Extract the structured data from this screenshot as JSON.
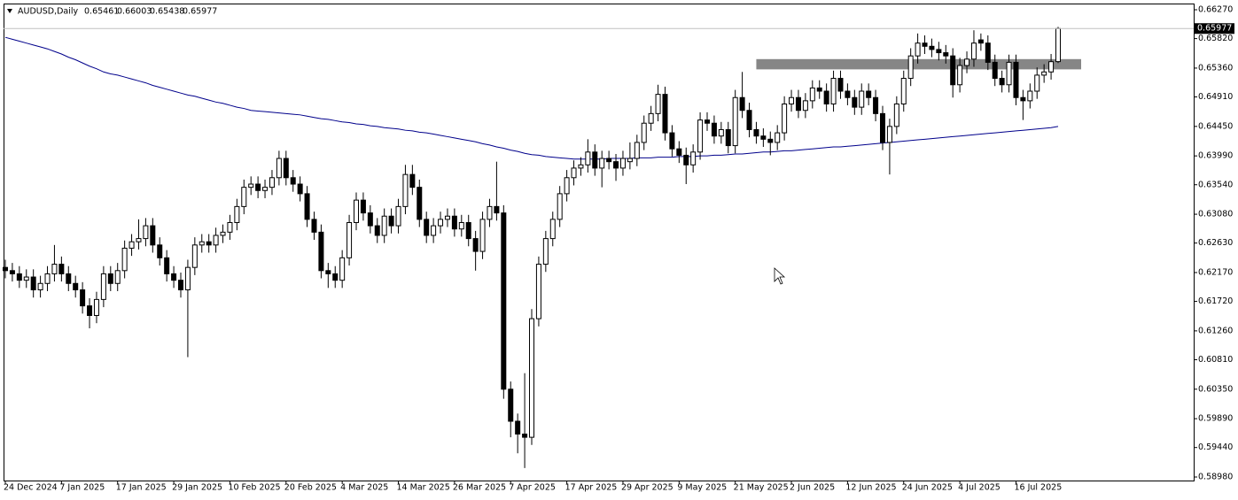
{
  "chart_data": {
    "type": "candlestick",
    "title": "AUDUSD,Daily",
    "categories": [
      "24 Dec 2024",
      null,
      null,
      null,
      null,
      null,
      null,
      null,
      "7 Jan 2025",
      null,
      null,
      null,
      null,
      null,
      null,
      null,
      "17 Jan 2025",
      null,
      null,
      null,
      null,
      null,
      null,
      null,
      "29 Jan 2025",
      null,
      null,
      null,
      null,
      null,
      null,
      null,
      "10 Feb 2025",
      null,
      null,
      null,
      null,
      null,
      null,
      null,
      "20 Feb 2025",
      null,
      null,
      null,
      null,
      null,
      null,
      null,
      "4 Mar 2025",
      null,
      null,
      null,
      null,
      null,
      null,
      null,
      "14 Mar 2025",
      null,
      null,
      null,
      null,
      null,
      null,
      null,
      "26 Mar 2025",
      null,
      null,
      null,
      null,
      null,
      null,
      null,
      "7 Apr 2025",
      null,
      null,
      null,
      null,
      null,
      null,
      null,
      "17 Apr 2025",
      null,
      null,
      null,
      null,
      null,
      null,
      null,
      "29 Apr 2025",
      null,
      null,
      null,
      null,
      null,
      null,
      null,
      "9 May 2025",
      null,
      null,
      null,
      null,
      null,
      null,
      null,
      "21 May 2025",
      null,
      null,
      null,
      null,
      null,
      null,
      null,
      "2 Jun 2025",
      null,
      null,
      null,
      null,
      null,
      null,
      null,
      "12 Jun 2025",
      null,
      null,
      null,
      null,
      null,
      null,
      null,
      "24 Jun 2025",
      null,
      null,
      null,
      null,
      null,
      null,
      null,
      "4 Jul 2025",
      null,
      null,
      null,
      null,
      null,
      null,
      null,
      "16 Jul 2025",
      null,
      null,
      null,
      null,
      null,
      null
    ],
    "open": [
      0.6225,
      0.622,
      0.6215,
      0.6205,
      0.621,
      0.619,
      0.62,
      0.6215,
      0.623,
      0.6215,
      0.62,
      0.619,
      0.6165,
      0.615,
      0.6175,
      0.6215,
      0.62,
      0.622,
      0.6255,
      0.6265,
      0.627,
      0.629,
      0.626,
      0.624,
      0.6215,
      0.6205,
      0.619,
      0.6225,
      0.626,
      0.6265,
      0.626,
      0.6275,
      0.628,
      0.6295,
      0.632,
      0.635,
      0.6355,
      0.6345,
      0.635,
      0.6365,
      0.6395,
      0.6365,
      0.6355,
      0.634,
      0.63,
      0.628,
      0.622,
      0.6215,
      0.6205,
      0.624,
      0.6295,
      0.633,
      0.631,
      0.629,
      0.6275,
      0.6305,
      0.629,
      0.632,
      0.637,
      0.635,
      0.63,
      0.6275,
      0.629,
      0.63,
      0.6305,
      0.6285,
      0.6295,
      0.627,
      0.625,
      0.63,
      0.632,
      0.631,
      0.6035,
      0.5985,
      0.5965,
      0.596,
      0.6145,
      0.623,
      0.627,
      0.63,
      0.634,
      0.6365,
      0.638,
      0.6385,
      0.6405,
      0.638,
      0.6395,
      0.639,
      0.638,
      0.639,
      0.6395,
      0.642,
      0.645,
      0.6465,
      0.6495,
      0.6435,
      0.641,
      0.64,
      0.6385,
      0.6405,
      0.6455,
      0.645,
      0.643,
      0.644,
      0.6415,
      0.649,
      0.647,
      0.644,
      0.643,
      0.6425,
      0.642,
      0.6435,
      0.648,
      0.649,
      0.647,
      0.6485,
      0.6505,
      0.65,
      0.648,
      0.652,
      0.65,
      0.649,
      0.6475,
      0.65,
      0.649,
      0.6465,
      0.642,
      0.6445,
      0.648,
      0.652,
      0.6555,
      0.6575,
      0.657,
      0.6565,
      0.656,
      0.6555,
      0.651,
      0.654,
      0.655,
      0.658,
      0.6575,
      0.6545,
      0.652,
      0.651,
      0.6545,
      0.649,
      0.6485,
      0.65,
      0.6525,
      0.653,
      0.65461
    ],
    "high": [
      0.6237,
      0.6232,
      0.6227,
      0.6222,
      0.6222,
      0.6212,
      0.6227,
      0.626,
      0.6242,
      0.6227,
      0.6212,
      0.6202,
      0.6177,
      0.6187,
      0.6227,
      0.6227,
      0.6232,
      0.6267,
      0.6277,
      0.63,
      0.6302,
      0.6302,
      0.6272,
      0.6252,
      0.6227,
      0.6217,
      0.6237,
      0.6272,
      0.6277,
      0.6277,
      0.6287,
      0.6292,
      0.6307,
      0.6332,
      0.6362,
      0.6367,
      0.6367,
      0.6362,
      0.6377,
      0.6407,
      0.6407,
      0.6377,
      0.6367,
      0.6352,
      0.6312,
      0.6292,
      0.6232,
      0.6227,
      0.6252,
      0.6307,
      0.6342,
      0.6342,
      0.6322,
      0.6302,
      0.6317,
      0.6317,
      0.6332,
      0.6385,
      0.6385,
      0.6362,
      0.6312,
      0.6302,
      0.6312,
      0.6317,
      0.6317,
      0.6307,
      0.6307,
      0.6282,
      0.6312,
      0.6332,
      0.639,
      0.6322,
      0.6047,
      0.5997,
      0.606,
      0.616,
      0.6242,
      0.6282,
      0.6312,
      0.6352,
      0.6377,
      0.6392,
      0.6397,
      0.6425,
      0.6417,
      0.6407,
      0.6407,
      0.6402,
      0.6407,
      0.642,
      0.6432,
      0.6462,
      0.6477,
      0.651,
      0.6507,
      0.6447,
      0.6422,
      0.6412,
      0.6417,
      0.6467,
      0.6467,
      0.6462,
      0.6452,
      0.6452,
      0.6502,
      0.653,
      0.6482,
      0.6452,
      0.6442,
      0.6437,
      0.6447,
      0.6492,
      0.6502,
      0.6502,
      0.6497,
      0.6517,
      0.6517,
      0.6512,
      0.6532,
      0.6532,
      0.6512,
      0.6502,
      0.6512,
      0.6512,
      0.6502,
      0.6477,
      0.6457,
      0.6492,
      0.6532,
      0.6567,
      0.659,
      0.6587,
      0.6582,
      0.6577,
      0.6572,
      0.6567,
      0.6552,
      0.6562,
      0.6595,
      0.659,
      0.6587,
      0.6557,
      0.6532,
      0.6557,
      0.6557,
      0.6502,
      0.6512,
      0.6537,
      0.6542,
      0.6558,
      0.66003
    ],
    "low": [
      0.6208,
      0.6203,
      0.6193,
      0.6193,
      0.6178,
      0.6178,
      0.6188,
      0.6203,
      0.6203,
      0.6188,
      0.6178,
      0.6153,
      0.613,
      0.6138,
      0.6163,
      0.6188,
      0.6188,
      0.6208,
      0.6243,
      0.6253,
      0.6258,
      0.6248,
      0.6228,
      0.6203,
      0.6193,
      0.6178,
      0.6085,
      0.6213,
      0.6248,
      0.6248,
      0.6248,
      0.6263,
      0.6268,
      0.6283,
      0.6308,
      0.6338,
      0.6333,
      0.6333,
      0.6338,
      0.6353,
      0.6353,
      0.6343,
      0.6328,
      0.6288,
      0.6268,
      0.6208,
      0.6193,
      0.6193,
      0.6193,
      0.6228,
      0.6283,
      0.6298,
      0.6278,
      0.6263,
      0.6263,
      0.6278,
      0.6278,
      0.6308,
      0.6338,
      0.6288,
      0.6263,
      0.6263,
      0.6278,
      0.6288,
      0.6273,
      0.6273,
      0.6258,
      0.622,
      0.6238,
      0.6288,
      0.6298,
      0.602,
      0.596,
      0.5935,
      0.5912,
      0.5948,
      0.6133,
      0.6218,
      0.6258,
      0.6288,
      0.6328,
      0.6353,
      0.6368,
      0.6373,
      0.6368,
      0.635,
      0.6378,
      0.636,
      0.6368,
      0.6378,
      0.6383,
      0.6408,
      0.6438,
      0.6453,
      0.6423,
      0.6398,
      0.6388,
      0.6355,
      0.6373,
      0.6393,
      0.6438,
      0.6418,
      0.6418,
      0.6403,
      0.6403,
      0.6458,
      0.6428,
      0.6418,
      0.6413,
      0.64,
      0.6408,
      0.6423,
      0.6468,
      0.6458,
      0.6458,
      0.6473,
      0.6488,
      0.6468,
      0.6468,
      0.6488,
      0.6478,
      0.6463,
      0.6463,
      0.6478,
      0.6453,
      0.6408,
      0.637,
      0.6433,
      0.6468,
      0.6508,
      0.6543,
      0.6558,
      0.6553,
      0.6548,
      0.6543,
      0.649,
      0.6498,
      0.6528,
      0.6538,
      0.6563,
      0.6533,
      0.6508,
      0.6498,
      0.6498,
      0.6478,
      0.6455,
      0.6473,
      0.6488,
      0.6513,
      0.6518,
      0.65438
    ],
    "close": [
      0.622,
      0.6215,
      0.6205,
      0.621,
      0.619,
      0.62,
      0.6215,
      0.623,
      0.6215,
      0.62,
      0.619,
      0.6165,
      0.615,
      0.6175,
      0.6215,
      0.62,
      0.622,
      0.6255,
      0.6265,
      0.627,
      0.629,
      0.626,
      0.624,
      0.6215,
      0.6205,
      0.619,
      0.6225,
      0.626,
      0.6265,
      0.626,
      0.6275,
      0.628,
      0.6295,
      0.632,
      0.635,
      0.6355,
      0.6345,
      0.635,
      0.6365,
      0.6395,
      0.6365,
      0.6355,
      0.634,
      0.63,
      0.628,
      0.622,
      0.6215,
      0.6205,
      0.624,
      0.6295,
      0.633,
      0.631,
      0.629,
      0.6275,
      0.6305,
      0.629,
      0.632,
      0.637,
      0.635,
      0.63,
      0.6275,
      0.629,
      0.63,
      0.6305,
      0.6285,
      0.6295,
      0.627,
      0.625,
      0.63,
      0.632,
      0.631,
      0.6035,
      0.5985,
      0.5965,
      0.596,
      0.6145,
      0.623,
      0.627,
      0.63,
      0.634,
      0.6365,
      0.638,
      0.6385,
      0.6405,
      0.638,
      0.6395,
      0.639,
      0.638,
      0.6395,
      0.6395,
      0.642,
      0.645,
      0.6465,
      0.6495,
      0.6435,
      0.641,
      0.64,
      0.6385,
      0.6405,
      0.6455,
      0.645,
      0.643,
      0.644,
      0.6415,
      0.649,
      0.647,
      0.644,
      0.643,
      0.6425,
      0.642,
      0.6435,
      0.648,
      0.649,
      0.647,
      0.6485,
      0.6505,
      0.65,
      0.648,
      0.652,
      0.65,
      0.649,
      0.6475,
      0.65,
      0.649,
      0.6465,
      0.642,
      0.6445,
      0.648,
      0.652,
      0.6555,
      0.6575,
      0.657,
      0.6565,
      0.656,
      0.6555,
      0.651,
      0.654,
      0.655,
      0.6575,
      0.6575,
      0.6545,
      0.652,
      0.651,
      0.6545,
      0.649,
      0.6485,
      0.65,
      0.6525,
      0.653,
      0.6546,
      0.65977
    ],
    "series": [
      {
        "color": "#00008b",
        "values": [
          0.6584,
          0.6581,
          0.6578,
          0.6575,
          0.6572,
          0.6569,
          0.6566,
          0.6562,
          0.6558,
          0.6553,
          0.6549,
          0.6544,
          0.6539,
          0.6535,
          0.653,
          0.6527,
          0.6525,
          0.6522,
          0.6519,
          0.6516,
          0.6513,
          0.6509,
          0.6506,
          0.6503,
          0.65,
          0.6497,
          0.6494,
          0.6492,
          0.6489,
          0.6486,
          0.6483,
          0.6481,
          0.6478,
          0.6475,
          0.6473,
          0.647,
          0.6469,
          0.6468,
          0.6467,
          0.6466,
          0.6465,
          0.6464,
          0.6463,
          0.6461,
          0.6459,
          0.6457,
          0.6456,
          0.6454,
          0.6452,
          0.6451,
          0.6449,
          0.6448,
          0.6446,
          0.6445,
          0.6443,
          0.6442,
          0.6441,
          0.6439,
          0.6438,
          0.6436,
          0.6435,
          0.6433,
          0.6431,
          0.6429,
          0.6427,
          0.6425,
          0.6423,
          0.6421,
          0.6418,
          0.6416,
          0.6413,
          0.6411,
          0.6408,
          0.6406,
          0.6403,
          0.6401,
          0.64,
          0.6398,
          0.6397,
          0.6396,
          0.6395,
          0.6394,
          0.6394,
          0.6394,
          0.6394,
          0.6394,
          0.6395,
          0.6395,
          0.6395,
          0.6395,
          0.6396,
          0.6396,
          0.6396,
          0.6397,
          0.6397,
          0.6397,
          0.6398,
          0.6398,
          0.6398,
          0.6399,
          0.6399,
          0.64,
          0.64,
          0.6401,
          0.6402,
          0.6402,
          0.6403,
          0.6404,
          0.6405,
          0.6405,
          0.6406,
          0.6407,
          0.6407,
          0.6408,
          0.6409,
          0.641,
          0.6411,
          0.6412,
          0.6413,
          0.6413,
          0.6414,
          0.6415,
          0.6416,
          0.6417,
          0.6418,
          0.6419,
          0.642,
          0.6421,
          0.6422,
          0.6423,
          0.6424,
          0.6425,
          0.6426,
          0.6427,
          0.6428,
          0.6429,
          0.643,
          0.6431,
          0.6432,
          0.6433,
          0.6434,
          0.6435,
          0.6436,
          0.6437,
          0.6438,
          0.6439,
          0.644,
          0.6441,
          0.6442,
          0.6443,
          0.6445
        ]
      }
    ],
    "zone": {
      "low": 0.6534,
      "high": 0.655,
      "color": "#808080"
    },
    "ylim": [
      0.58925,
      0.66367
    ],
    "yticks": [
      {
        "value": 0.6627,
        "label": "0.66270"
      },
      {
        "value": 0.6582,
        "label": "0.65820"
      },
      {
        "value": 0.6536,
        "label": "0.65360"
      },
      {
        "value": 0.6491,
        "label": "0.64910"
      },
      {
        "value": 0.6445,
        "label": "0.64450"
      },
      {
        "value": 0.6399,
        "label": "0.63990"
      },
      {
        "value": 0.6354,
        "label": "0.63540"
      },
      {
        "value": 0.6308,
        "label": "0.63080"
      },
      {
        "value": 0.6263,
        "label": "0.62630"
      },
      {
        "value": 0.6217,
        "label": "0.62170"
      },
      {
        "value": 0.6172,
        "label": "0.61720"
      },
      {
        "value": 0.6126,
        "label": "0.61260"
      },
      {
        "value": 0.6081,
        "label": "0.60810"
      },
      {
        "value": 0.6035,
        "label": "0.60350"
      },
      {
        "value": 0.5989,
        "label": "0.59890"
      },
      {
        "value": 0.5944,
        "label": "0.59440"
      },
      {
        "value": 0.5898,
        "label": "0.58980"
      }
    ],
    "grid": false
  }
}
